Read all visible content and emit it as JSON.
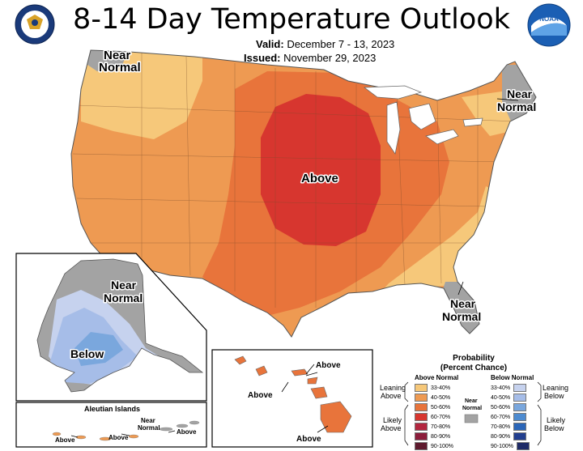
{
  "title": "8-14 Day Temperature Outlook",
  "valid": {
    "label": "Valid:",
    "value": "December 7 - 13, 2023"
  },
  "issued": {
    "label": "Issued:",
    "value": "November 29, 2023"
  },
  "logos": {
    "left": "doc-seal-logo",
    "right": "noaa-logo"
  },
  "map_labels": {
    "near_normal_nw": [
      "Near",
      "Normal"
    ],
    "near_normal_ne": [
      "Near",
      "Normal"
    ],
    "near_normal_se": [
      "Near",
      "Normal"
    ],
    "above_center": "Above",
    "alaska_near_normal": [
      "Near",
      "Normal"
    ],
    "alaska_below": "Below",
    "hawaii_above_1": "Above",
    "hawaii_above_2": "Above",
    "hawaii_above_3": "Above",
    "aleutian_title": "Aleutian Islands",
    "aleutian_above_1": "Above",
    "aleutian_above_2": "Above",
    "aleutian_above_3": "Above",
    "aleutian_near_normal": [
      "Near",
      "Normal"
    ]
  },
  "legend": {
    "title": [
      "Probability",
      "(Percent Chance)"
    ],
    "above_header": "Above Normal",
    "below_header": "Below Normal",
    "near_normal": [
      "Near",
      "Normal"
    ],
    "leaning_above": [
      "Leaning",
      "Above"
    ],
    "likely_above": [
      "Likely",
      "Above"
    ],
    "leaning_below": [
      "Leaning",
      "Below"
    ],
    "likely_below": [
      "Likely",
      "Below"
    ],
    "above_bins": [
      {
        "label": "33-40%",
        "color": "#f6c87a"
      },
      {
        "label": "40-50%",
        "color": "#ee9a52"
      },
      {
        "label": "50-60%",
        "color": "#e8743b"
      },
      {
        "label": "60-70%",
        "color": "#d7362f"
      },
      {
        "label": "70-80%",
        "color": "#b3263f"
      },
      {
        "label": "80-90%",
        "color": "#8c1d3b"
      },
      {
        "label": "90-100%",
        "color": "#5e1a2e"
      }
    ],
    "below_bins": [
      {
        "label": "33-40%",
        "color": "#c6d2ee"
      },
      {
        "label": "40-50%",
        "color": "#a6bde8"
      },
      {
        "label": "50-60%",
        "color": "#7aa7dd"
      },
      {
        "label": "60-70%",
        "color": "#4d8bd0"
      },
      {
        "label": "70-80%",
        "color": "#2b66b8"
      },
      {
        "label": "80-90%",
        "color": "#223f8f"
      },
      {
        "label": "90-100%",
        "color": "#1e2a66"
      }
    ],
    "near_normal_color": "#a3a3a3"
  },
  "colors": {
    "near_normal": "#a3a3a3",
    "above_33_40": "#f6c87a",
    "above_40_50": "#ee9a52",
    "above_50_60": "#e8743b",
    "above_60_70": "#d7362f",
    "below_33_40": "#c6d2ee",
    "below_40_50": "#a6bde8",
    "below_50_60": "#7aa7dd",
    "water": "#ffffff"
  }
}
